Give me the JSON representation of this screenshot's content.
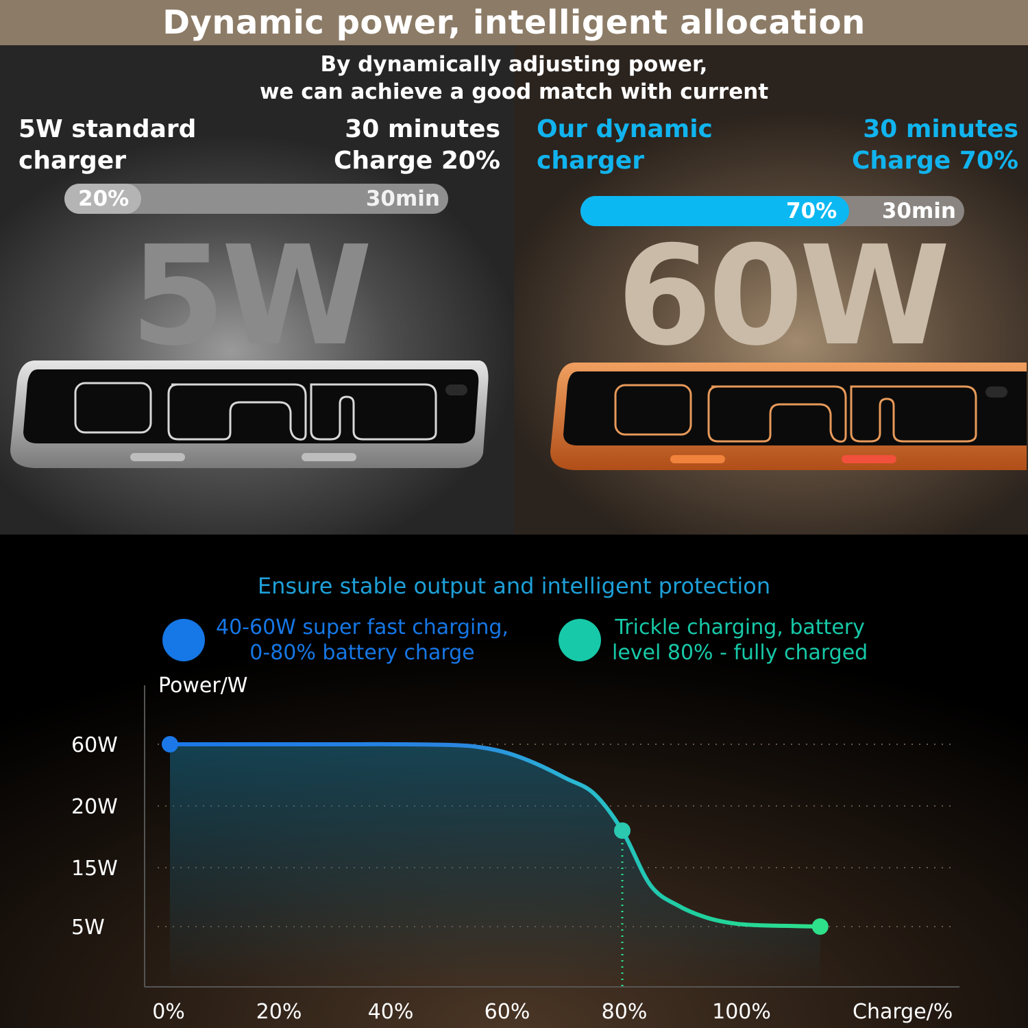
{
  "banner": {
    "title": "Dynamic power, intelligent allocation"
  },
  "intro": {
    "line1": "By dynamically adjusting power,",
    "line2": "we can achieve a good match with current"
  },
  "standard": {
    "title_line1": "5W standard",
    "title_line2": "charger",
    "time_line1": "30 minutes",
    "time_line2": "Charge 20%",
    "bar_percent_label": "20%",
    "bar_time_label": "30min",
    "progress": 0.2,
    "watt": "5W"
  },
  "dynamic": {
    "title_line1": "Our dynamic",
    "title_line2": "charger",
    "time_line1": "30 minutes",
    "time_line2": "Charge 70%",
    "bar_percent_label": "70%",
    "bar_time_label": "30min",
    "progress": 0.7,
    "watt": "60W"
  },
  "colors": {
    "accent": "#11b4ee",
    "fast": "#1677e6",
    "trickle": "#17c9a8",
    "curve_end": "#2ee08a"
  },
  "chart_data": {
    "type": "line",
    "title": "Ensure stable output and intelligent protection",
    "ylabel": "Power/W",
    "xlabel": "Charge/%",
    "x_ticks": [
      "0%",
      "20%",
      "40%",
      "60%",
      "80%",
      "100%"
    ],
    "y_ticks": [
      "60W",
      "20W",
      "15W",
      "5W"
    ],
    "y_scale": "categorical",
    "legend": [
      {
        "line1": "40-60W super fast charging,",
        "line2": "0-80% battery charge",
        "color": "#1677e6"
      },
      {
        "line1": "Trickle charging, battery",
        "line2": "level 80% - fully charged",
        "color": "#17c9a8"
      }
    ],
    "series": [
      {
        "x": [
          0,
          10,
          20,
          30,
          40,
          50,
          55,
          60,
          65,
          70,
          75,
          80,
          85,
          90,
          95,
          100,
          105,
          110,
          115
        ],
        "y": [
          60,
          60,
          60,
          60,
          60,
          59.5,
          58,
          54,
          47,
          38,
          28,
          18,
          12,
          8.5,
          6.5,
          5.5,
          5.2,
          5.1,
          5
        ]
      }
    ],
    "markers": [
      {
        "x": 0,
        "y": 60
      },
      {
        "x": 80,
        "y": 18
      },
      {
        "x": 115,
        "y": 5
      }
    ],
    "dotted_drop_at_x": 80,
    "grid": "dotted horizontal"
  }
}
